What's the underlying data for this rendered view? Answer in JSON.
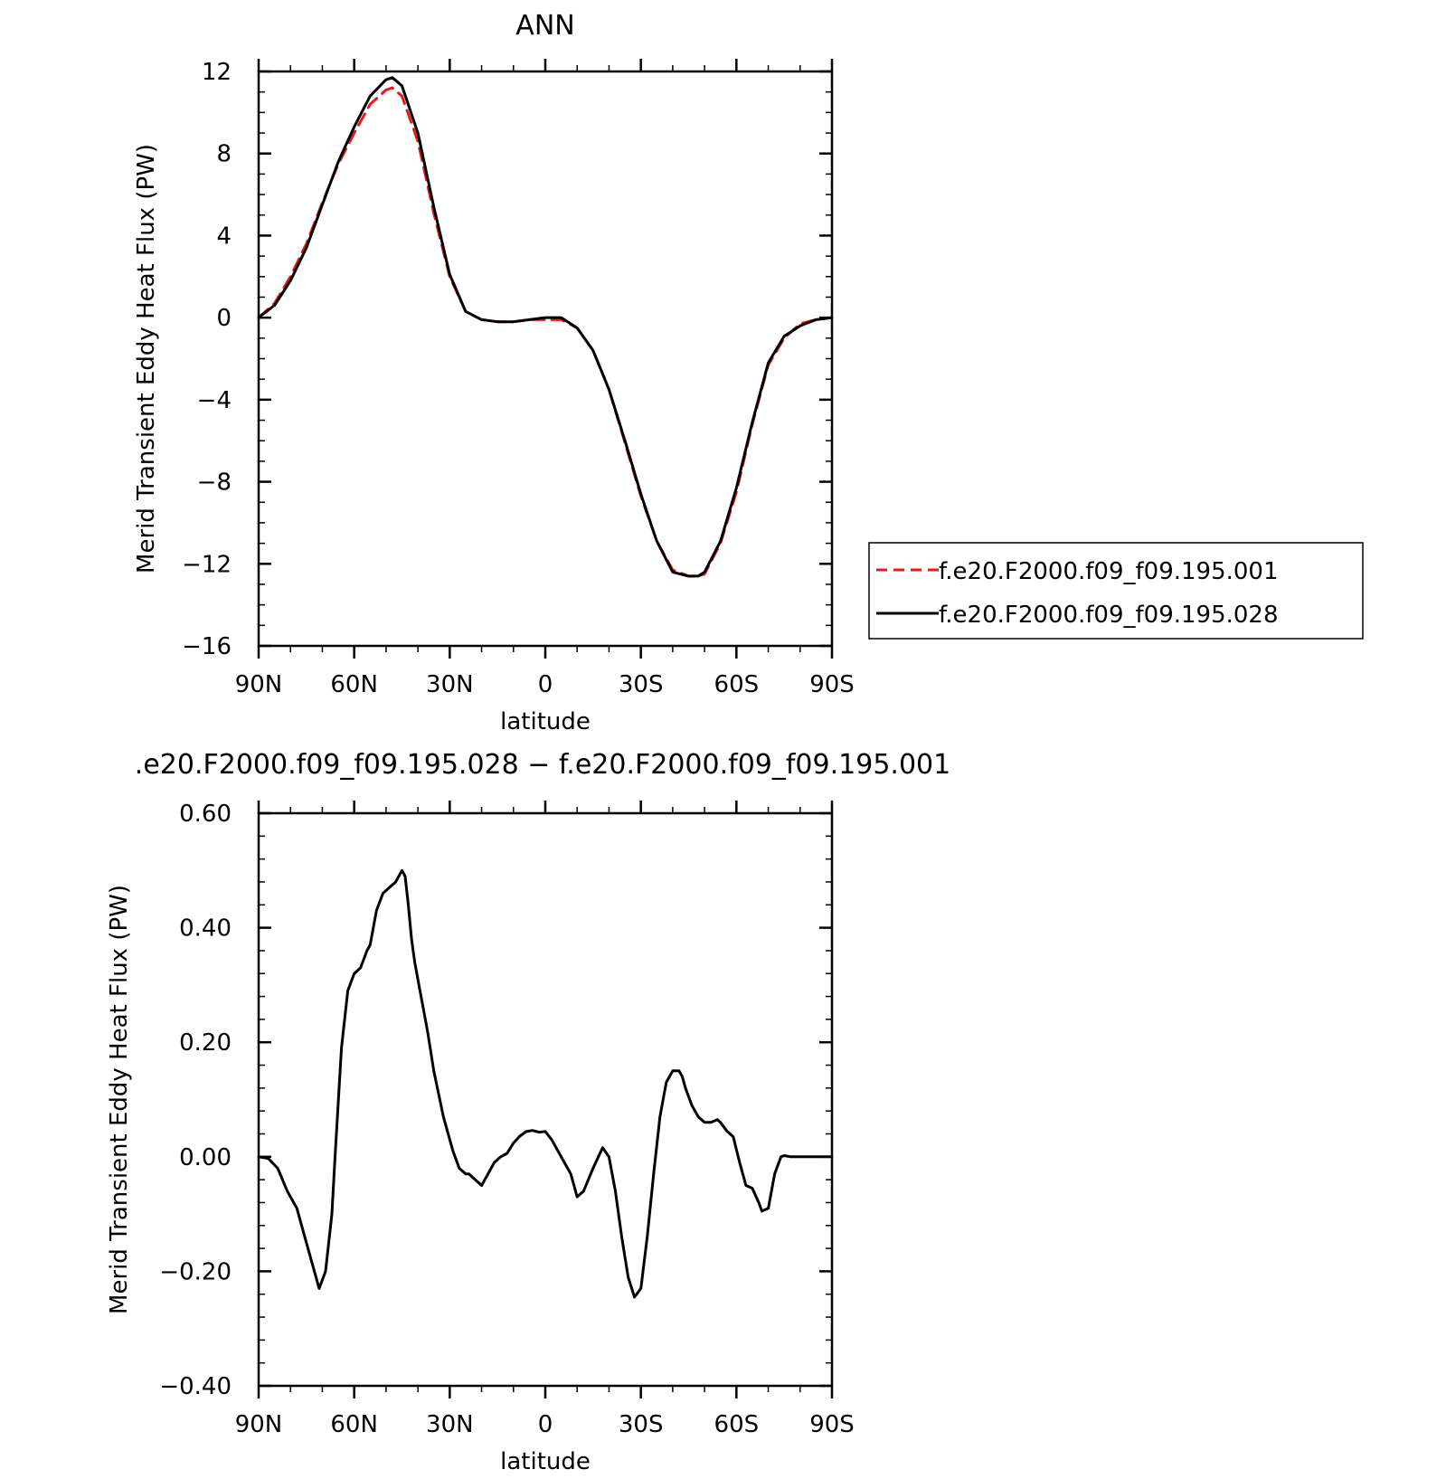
{
  "chart_data": [
    {
      "type": "line",
      "title": "ANN",
      "xlabel": "latitude",
      "ylabel": "Merid Transient Eddy Heat Flux (PW)",
      "xlim": [
        90,
        -90
      ],
      "ylim": [
        -16,
        12
      ],
      "x_ticks": [
        {
          "value": 90,
          "label": "90N"
        },
        {
          "value": 60,
          "label": "60N"
        },
        {
          "value": 30,
          "label": "30N"
        },
        {
          "value": 0,
          "label": "0"
        },
        {
          "value": -30,
          "label": "30S"
        },
        {
          "value": -60,
          "label": "60S"
        },
        {
          "value": -90,
          "label": "90S"
        }
      ],
      "y_ticks": [
        {
          "value": 12,
          "label": "12"
        },
        {
          "value": 8,
          "label": "8"
        },
        {
          "value": 4,
          "label": "4"
        },
        {
          "value": 0,
          "label": "0"
        },
        {
          "value": -4,
          "label": "−4"
        },
        {
          "value": -8,
          "label": "−8"
        },
        {
          "value": -12,
          "label": "−12"
        },
        {
          "value": -16,
          "label": "−16"
        }
      ],
      "grid": false,
      "legend": "right",
      "x": [
        90,
        85,
        80,
        75,
        70,
        65,
        60,
        55,
        50,
        48,
        45,
        40,
        35,
        30,
        25,
        20,
        15,
        10,
        5,
        0,
        -5,
        -10,
        -15,
        -20,
        -25,
        -30,
        -35,
        -40,
        -45,
        -48,
        -50,
        -55,
        -60,
        -65,
        -70,
        -75,
        -80,
        -85,
        -90
      ],
      "series": [
        {
          "name": "f.e20.F2000.f09_f09.195.001",
          "color": "#e41a1c",
          "dash": "dashed",
          "values": [
            0,
            0.7,
            2.0,
            3.6,
            5.6,
            7.5,
            9.0,
            10.4,
            11.1,
            11.2,
            10.8,
            8.6,
            5.1,
            2.0,
            0.3,
            -0.1,
            -0.2,
            -0.2,
            -0.1,
            -0.1,
            -0.1,
            -0.5,
            -1.6,
            -3.5,
            -6.1,
            -8.7,
            -10.9,
            -12.3,
            -12.6,
            -12.6,
            -12.5,
            -11.0,
            -8.5,
            -5.2,
            -2.3,
            -1.0,
            -0.3,
            -0.1,
            0
          ]
        },
        {
          "name": "f.e20.F2000.f09_f09.195.028",
          "color": "#000000",
          "dash": "solid",
          "values": [
            0,
            0.6,
            1.8,
            3.4,
            5.5,
            7.6,
            9.3,
            10.8,
            11.6,
            11.7,
            11.3,
            9.0,
            5.4,
            2.1,
            0.3,
            -0.1,
            -0.2,
            -0.2,
            -0.1,
            0,
            0,
            -0.5,
            -1.6,
            -3.5,
            -6.0,
            -8.6,
            -10.9,
            -12.4,
            -12.6,
            -12.6,
            -12.4,
            -10.9,
            -8.3,
            -5.1,
            -2.2,
            -0.9,
            -0.4,
            -0.1,
            0
          ]
        }
      ]
    },
    {
      "type": "line",
      "title": ".e20.F2000.f09_f09.195.028 − f.e20.F2000.f09_f09.195.001",
      "xlabel": "latitude",
      "ylabel": "Merid Transient Eddy Heat Flux (PW)",
      "xlim": [
        90,
        -90
      ],
      "ylim": [
        -0.4,
        0.6
      ],
      "x_ticks": [
        {
          "value": 90,
          "label": "90N"
        },
        {
          "value": 60,
          "label": "60N"
        },
        {
          "value": 30,
          "label": "30N"
        },
        {
          "value": 0,
          "label": "0"
        },
        {
          "value": -30,
          "label": "30S"
        },
        {
          "value": -60,
          "label": "60S"
        },
        {
          "value": -90,
          "label": "90S"
        }
      ],
      "y_ticks": [
        {
          "value": 0.6,
          "label": "0.60"
        },
        {
          "value": 0.4,
          "label": "0.40"
        },
        {
          "value": 0.2,
          "label": "0.20"
        },
        {
          "value": 0,
          "label": "0.00"
        },
        {
          "value": -0.2,
          "label": "−0.20"
        },
        {
          "value": -0.4,
          "label": "−0.40"
        }
      ],
      "grid": false,
      "x": [
        90,
        87,
        84,
        81,
        78,
        75,
        72,
        71,
        69,
        67,
        66,
        64,
        62,
        60,
        58,
        56,
        55,
        53,
        51,
        49,
        47,
        46,
        45,
        44,
        43,
        42,
        41,
        40,
        39,
        37,
        35,
        32,
        29,
        27,
        25,
        24,
        22,
        20,
        18,
        16,
        14,
        12,
        10,
        8,
        6,
        4,
        2,
        0,
        -2,
        -4,
        -6,
        -8,
        -10,
        -12,
        -15,
        -18,
        -20,
        -22,
        -24,
        -26,
        -28,
        -30,
        -32,
        -34,
        -36,
        -38,
        -40,
        -42,
        -43,
        -44,
        -46,
        -48,
        -50,
        -52,
        -54,
        -55,
        -57,
        -59,
        -61,
        -63,
        -65,
        -67,
        -68,
        -70,
        -72,
        -74,
        -75,
        -77,
        -79,
        -81,
        -83,
        -85,
        -88,
        -90
      ],
      "series": [
        {
          "name": "",
          "color": "#000000",
          "dash": "solid",
          "values": [
            0,
            -0.003,
            -0.02,
            -0.06,
            -0.09,
            -0.15,
            -0.21,
            -0.23,
            -0.2,
            -0.1,
            0.0,
            0.19,
            0.29,
            0.32,
            0.33,
            0.36,
            0.37,
            0.43,
            0.46,
            0.47,
            0.48,
            0.49,
            0.5,
            0.49,
            0.44,
            0.38,
            0.34,
            0.31,
            0.28,
            0.22,
            0.15,
            0.07,
            0.01,
            -0.02,
            -0.03,
            -0.03,
            -0.04,
            -0.05,
            -0.03,
            -0.01,
            0.0,
            0.006,
            0.024,
            0.036,
            0.044,
            0.046,
            0.043,
            0.044,
            0.03,
            0.01,
            -0.01,
            -0.03,
            -0.07,
            -0.06,
            -0.02,
            0.016,
            0.0,
            -0.06,
            -0.14,
            -0.21,
            -0.245,
            -0.23,
            -0.14,
            -0.03,
            0.07,
            0.13,
            0.15,
            0.15,
            0.14,
            0.12,
            0.09,
            0.07,
            0.06,
            0.06,
            0.065,
            0.06,
            0.045,
            0.035,
            -0.01,
            -0.05,
            -0.055,
            -0.08,
            -0.095,
            -0.09,
            -0.03,
            0.0,
            0.002,
            0.0,
            0,
            0,
            0,
            0,
            0,
            0
          ]
        }
      ]
    }
  ]
}
